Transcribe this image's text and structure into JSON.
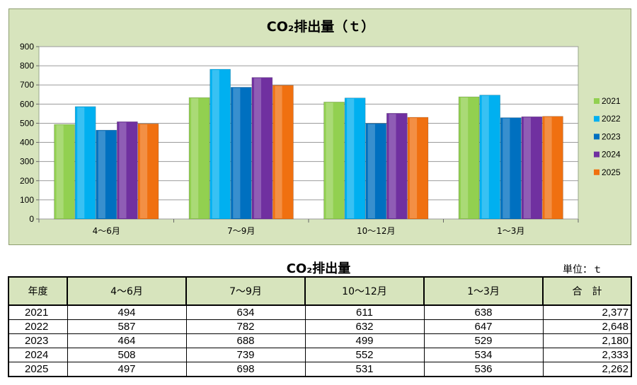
{
  "chart_data": {
    "type": "bar",
    "title": "CO₂排出量（ｔ）",
    "categories": [
      "4～6月",
      "7～9月",
      "10～12月",
      "1～3月"
    ],
    "series": [
      {
        "name": "2021",
        "values": [
          494,
          634,
          611,
          638
        ],
        "color": "#92d050"
      },
      {
        "name": "2022",
        "values": [
          587,
          782,
          632,
          647
        ],
        "color": "#00b0f0"
      },
      {
        "name": "2023",
        "values": [
          464,
          688,
          499,
          529
        ],
        "color": "#0070c0"
      },
      {
        "name": "2024",
        "values": [
          508,
          739,
          552,
          534
        ],
        "color": "#7030a0"
      },
      {
        "name": "2025",
        "values": [
          497,
          698,
          531,
          536
        ],
        "color": "#f07010"
      }
    ],
    "ylim": [
      0,
      900
    ],
    "yticks": [
      0,
      100,
      200,
      300,
      400,
      500,
      600,
      700,
      800,
      900
    ],
    "grid": true,
    "legend": "right"
  },
  "table": {
    "title": "CO₂排出量",
    "unit": "単位：ｔ",
    "headers": [
      "年度",
      "4～6月",
      "7～9月",
      "10～12月",
      "1～3月",
      "合　計"
    ],
    "rows": [
      [
        "2021",
        "494",
        "634",
        "611",
        "638",
        "2,377"
      ],
      [
        "2022",
        "587",
        "782",
        "632",
        "647",
        "2,648"
      ],
      [
        "2023",
        "464",
        "688",
        "499",
        "529",
        "2,180"
      ],
      [
        "2024",
        "508",
        "739",
        "552",
        "534",
        "2,333"
      ],
      [
        "2025",
        "497",
        "698",
        "531",
        "536",
        "2,262"
      ]
    ]
  }
}
